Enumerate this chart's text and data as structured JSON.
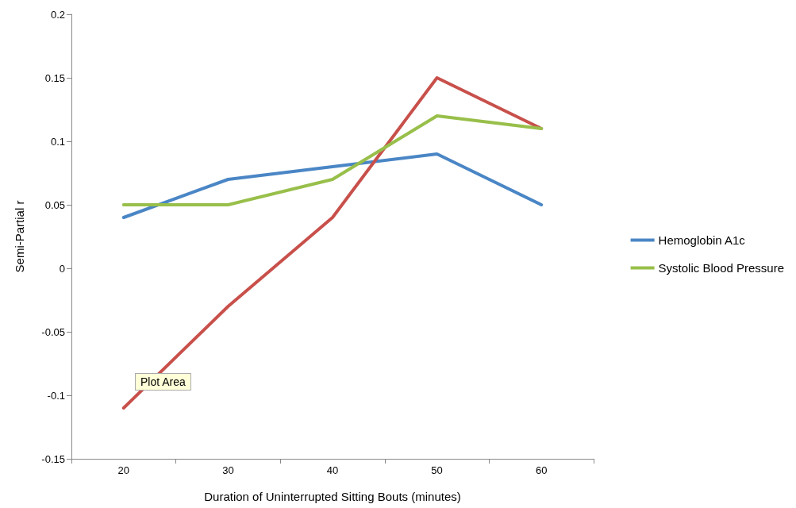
{
  "chart_data": {
    "type": "line",
    "xlabel": "Duration of Uninterrupted Sitting Bouts (minutes)",
    "ylabel": "Semi-Partial r",
    "categories": [
      "20",
      "30",
      "40",
      "50",
      "60"
    ],
    "series": [
      {
        "name": "Hemoglobin A1c",
        "color": "#4a86c5",
        "values": [
          0.04,
          0.07,
          0.08,
          0.09,
          0.05
        ]
      },
      {
        "color": "#c8504b",
        "values": [
          -0.11,
          -0.03,
          0.04,
          0.15,
          0.11
        ]
      },
      {
        "name": "Systolic Blood Pressure",
        "color": "#98bf4a",
        "values": [
          0.05,
          0.05,
          0.07,
          0.12,
          0.11
        ]
      }
    ],
    "ylim": [
      -0.15,
      0.2
    ],
    "yticks": [
      -0.15,
      -0.1,
      -0.05,
      0,
      0.05,
      0.1,
      0.15,
      0.2
    ],
    "grid": false,
    "legend": "right",
    "marker": "none",
    "line_style": "solid",
    "annotations": [
      "Plot Area"
    ]
  }
}
